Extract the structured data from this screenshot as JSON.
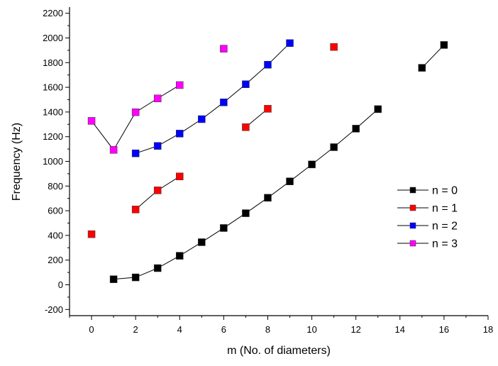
{
  "chart_data": {
    "type": "line",
    "title": "",
    "xlabel": "m (No. of diameters)",
    "ylabel": "Frequency (Hz)",
    "xlim": [
      -1,
      18
    ],
    "ylim": [
      -250,
      2250
    ],
    "x_ticks": [
      0,
      2,
      4,
      6,
      8,
      10,
      12,
      14,
      16,
      18
    ],
    "y_ticks": [
      -200,
      0,
      200,
      400,
      600,
      800,
      1000,
      1200,
      1400,
      1600,
      1800,
      2000,
      2200
    ],
    "grid": false,
    "legend_position": "right",
    "series": [
      {
        "name": "n = 0",
        "color": "#000000",
        "segments": [
          [
            [
              1,
              45
            ],
            [
              2,
              60
            ],
            [
              3,
              135
            ],
            [
              4,
              235
            ],
            [
              5,
              345
            ],
            [
              6,
              460
            ],
            [
              7,
              580
            ],
            [
              8,
              705
            ],
            [
              9,
              838
            ],
            [
              10,
              975
            ],
            [
              11,
              1115
            ],
            [
              12,
              1265
            ],
            [
              13,
              1423
            ]
          ],
          [
            [
              15,
              1758
            ],
            [
              16,
              1943
            ]
          ]
        ]
      },
      {
        "name": "n = 1",
        "color": "#ff0000",
        "segments": [
          [
            [
              0,
              410
            ]
          ],
          [
            [
              2,
              610
            ],
            [
              3,
              765
            ],
            [
              4,
              878
            ]
          ],
          [
            [
              7,
              1277
            ],
            [
              8,
              1426
            ]
          ],
          [
            [
              11,
              1927
            ]
          ]
        ]
      },
      {
        "name": "n = 2",
        "color": "#0000ff",
        "segments": [
          [
            [
              2,
              1065
            ],
            [
              3,
              1125
            ],
            [
              4,
              1225
            ],
            [
              5,
              1342
            ],
            [
              6,
              1478
            ],
            [
              7,
              1625
            ],
            [
              8,
              1783
            ],
            [
              9,
              1958
            ]
          ]
        ]
      },
      {
        "name": "n = 3",
        "color": "#ff00ff",
        "segments": [
          [
            [
              0,
              1328
            ],
            [
              1,
              1093
            ],
            [
              2,
              1398
            ],
            [
              3,
              1510
            ],
            [
              4,
              1618
            ]
          ],
          [
            [
              6,
              1913
            ]
          ]
        ]
      }
    ]
  }
}
